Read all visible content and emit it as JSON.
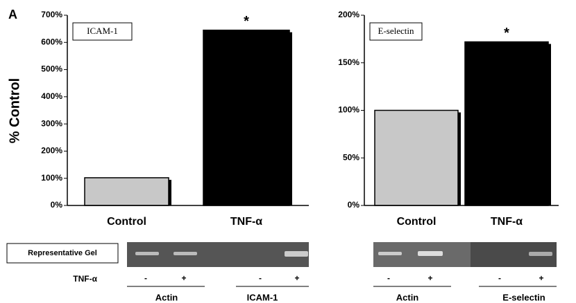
{
  "panel_label": "A",
  "y_axis_label": "% Control",
  "chart_data": [
    {
      "type": "bar",
      "title": "ICAM-1",
      "categories": [
        "Control",
        "TNF-α"
      ],
      "values": [
        102,
        645
      ],
      "colors": [
        "#c8c8c8",
        "#000000"
      ],
      "ylim": [
        0,
        700
      ],
      "yticks": [
        {
          "value": 0,
          "label": "0%"
        },
        {
          "value": 100,
          "label": "100%"
        },
        {
          "value": 200,
          "label": "200%"
        },
        {
          "value": 300,
          "label": "300%"
        },
        {
          "value": 400,
          "label": "400%"
        },
        {
          "value": 500,
          "label": "500%"
        },
        {
          "value": 600,
          "label": "600%"
        },
        {
          "value": 700,
          "label": "700%"
        }
      ],
      "annotation": "*"
    },
    {
      "type": "bar",
      "title": "E-selectin",
      "categories": [
        "Control",
        "TNF-α"
      ],
      "values": [
        100,
        172
      ],
      "colors": [
        "#c8c8c8",
        "#000000"
      ],
      "ylim": [
        0,
        200
      ],
      "yticks": [
        {
          "value": 0,
          "label": "0%"
        },
        {
          "value": 50,
          "label": "50%"
        },
        {
          "value": 100,
          "label": "100%"
        },
        {
          "value": 150,
          "label": "150%"
        },
        {
          "value": 200,
          "label": "200%"
        }
      ],
      "annotation": "*"
    }
  ],
  "gel": {
    "label": "Representative Gel",
    "treatment_label": "TNF-α",
    "panels": [
      {
        "treatment": [
          "-",
          "+",
          "-",
          "+"
        ],
        "groups": [
          "Actin",
          "ICAM-1"
        ]
      },
      {
        "treatment": [
          "-",
          "+",
          "-",
          "+"
        ],
        "groups": [
          "Actin",
          "E-selectin"
        ]
      }
    ]
  }
}
